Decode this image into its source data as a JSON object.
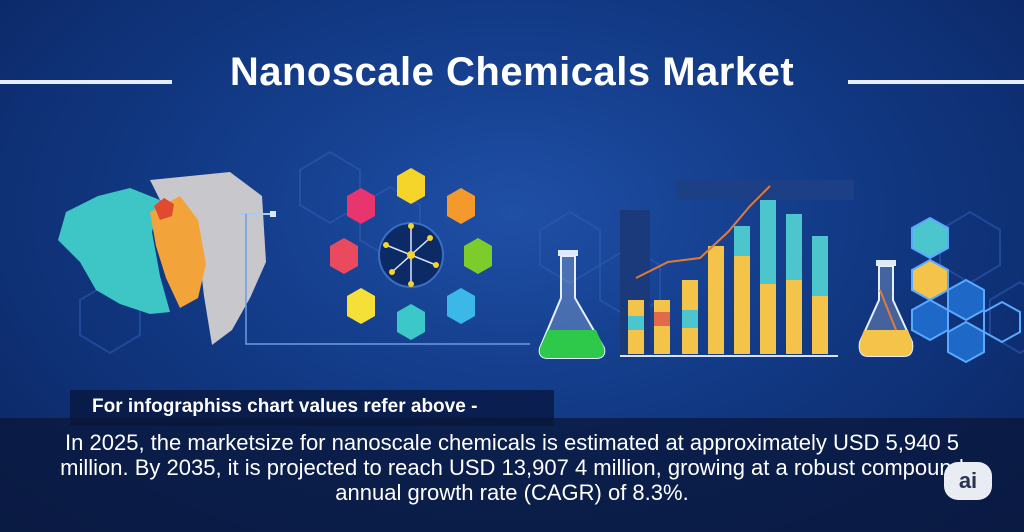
{
  "title": "Nanoscale Chemicals Market",
  "caption": "For infographiss chart values refer above -",
  "summary_lines": [
    "In 2025, the marketsize for nanoscale chemicals is estimated at approximately USD 5,940 5",
    "million. By 2035, it is projected to reach USD 13,907 4 million, growing at a robust compound",
    "annual growth rate (CAGR) of 8.3%."
  ],
  "badge_label": "ai",
  "colors": {
    "background": "#123a86",
    "teal": "#3ec6c6",
    "orange": "#f2a43a",
    "gray_region": "#c8c8cc",
    "hex_colors": [
      "#f5d52a",
      "#f49a2c",
      "#7ccc2c",
      "#3bb8e8",
      "#3cc8c8",
      "#f5e03a",
      "#ea4a5e",
      "#e8356e"
    ],
    "flask_liquid": "#2ec84a",
    "bar_yellow": "#f4c34a",
    "bar_teal": "#4cc6cc"
  },
  "icons": [
    "world-map-icon",
    "molecule-ring-icon",
    "flask-icon",
    "bar-chart-icon",
    "flask-icon",
    "hexagon-cluster-icon"
  ]
}
